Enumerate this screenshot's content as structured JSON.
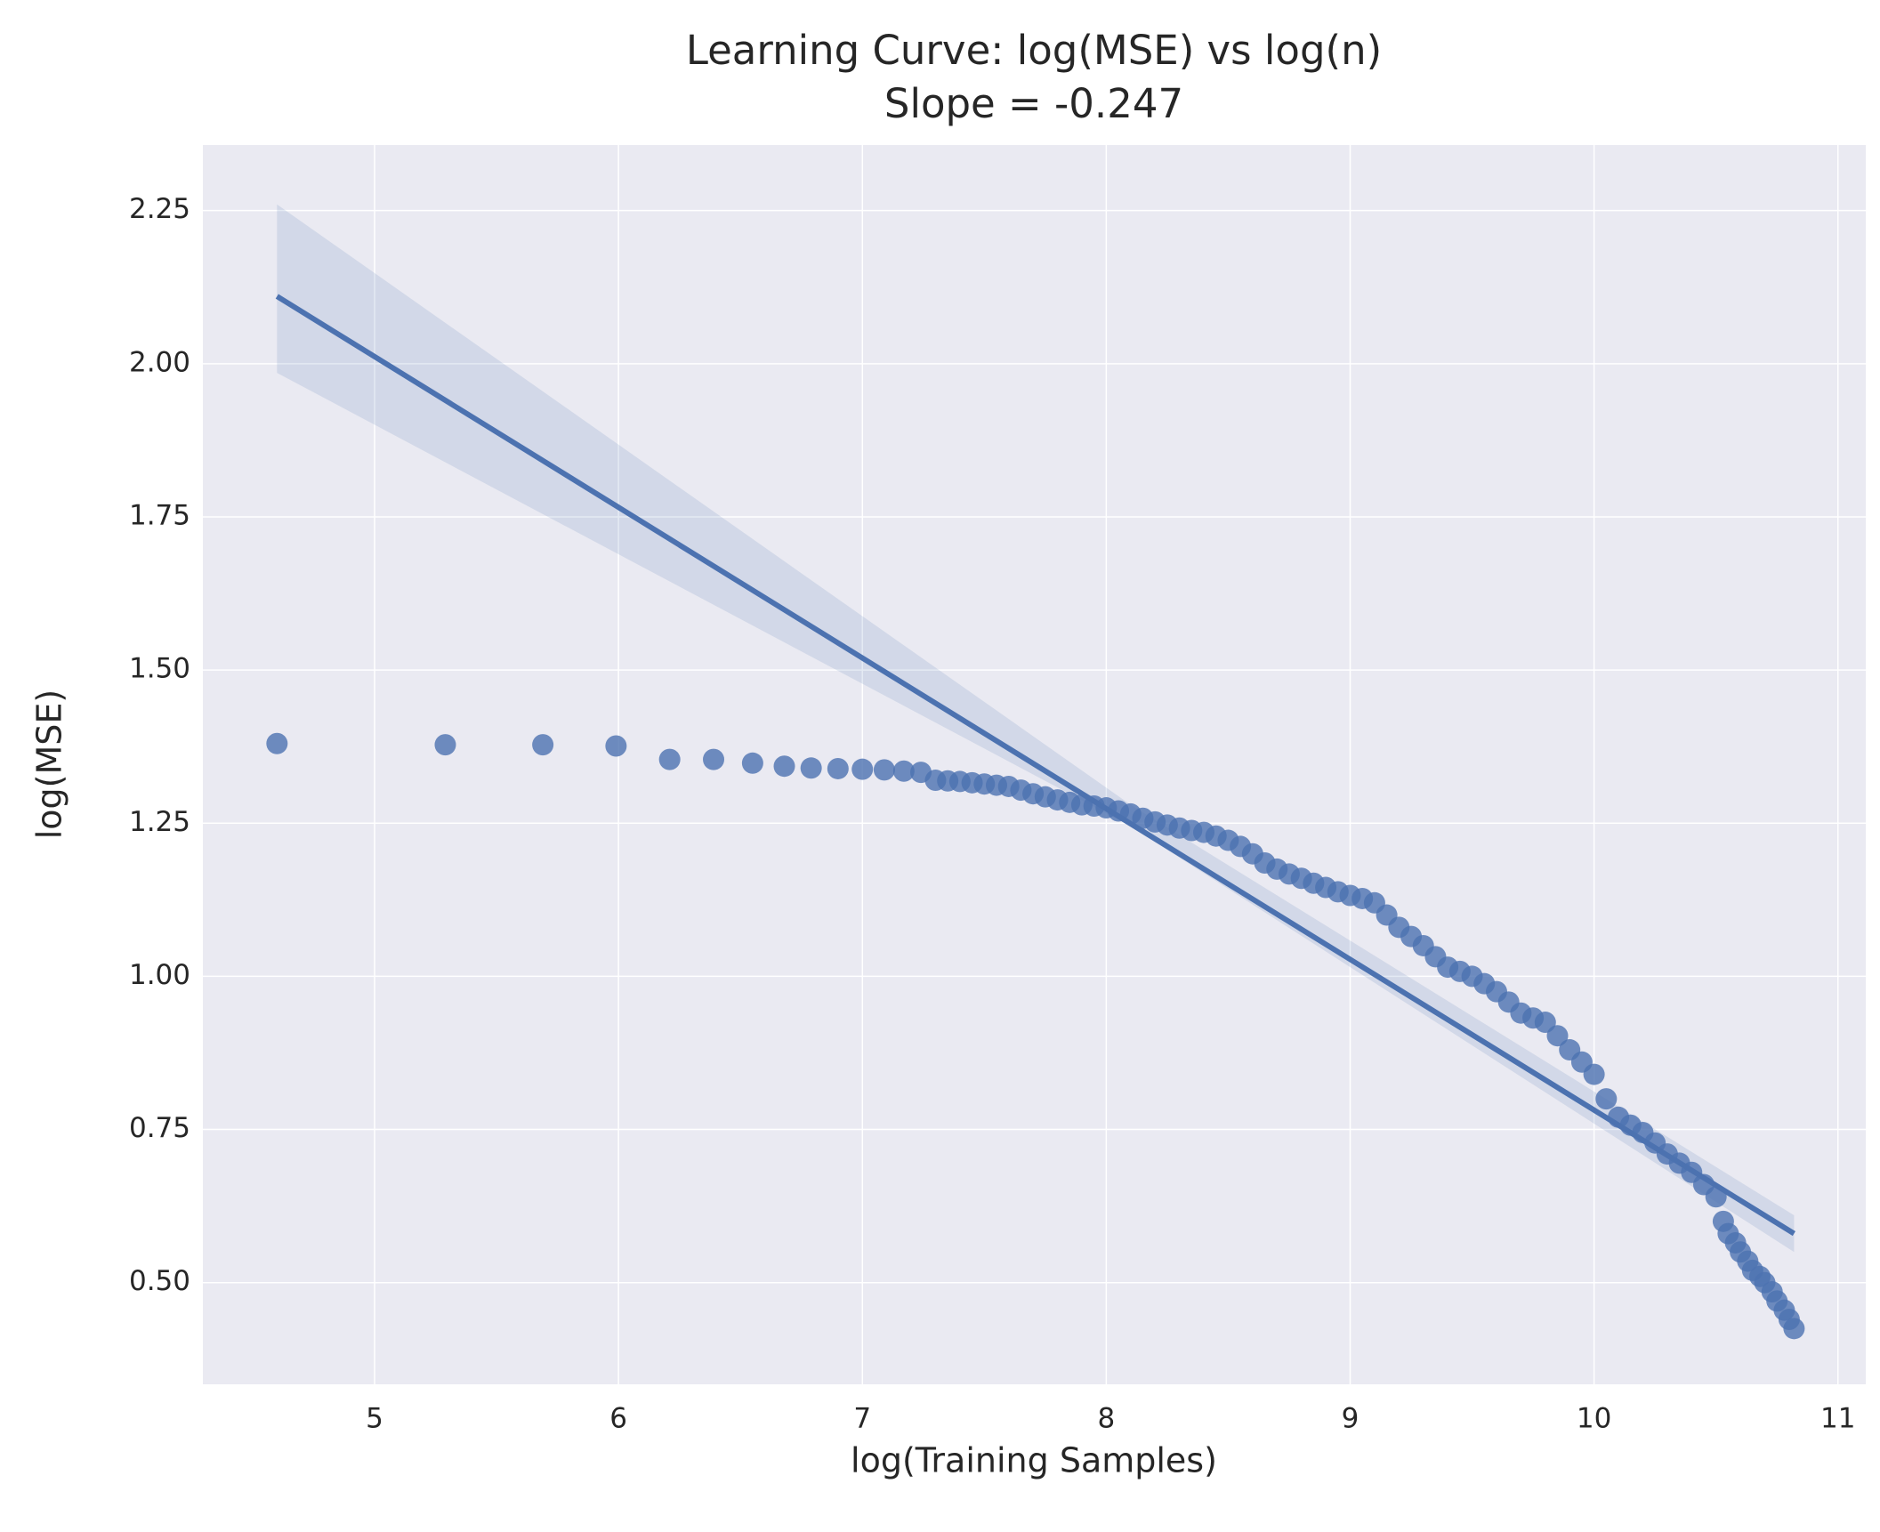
{
  "chart_data": {
    "type": "scatter",
    "title": "Learning Curve: log(MSE) vs log(n)",
    "subtitle": "Slope = -0.247",
    "x_label": "log(Training Samples)",
    "y_label": "log(MSE)",
    "color": "#4c72b0",
    "grid": true,
    "xlim": [
      4.296,
      11.114
    ],
    "ylim": [
      0.334,
      2.357
    ],
    "xticks": [
      5,
      6,
      7,
      8,
      9,
      10,
      11
    ],
    "yticks": [
      {
        "value": 0.5,
        "label": "0.50"
      },
      {
        "value": 0.75,
        "label": "0.75"
      },
      {
        "value": 1.0,
        "label": "1.00"
      },
      {
        "value": 1.25,
        "label": "1.25"
      },
      {
        "value": 1.5,
        "label": "1.50"
      },
      {
        "value": 1.75,
        "label": "1.75"
      },
      {
        "value": 2.0,
        "label": "2.00"
      },
      {
        "value": 2.25,
        "label": "2.25"
      }
    ],
    "x": [
      4.6,
      5.29,
      5.69,
      5.99,
      6.21,
      6.39,
      6.55,
      6.68,
      6.79,
      6.9,
      7.0,
      7.09,
      7.17,
      7.24,
      7.3,
      7.35,
      7.4,
      7.45,
      7.5,
      7.55,
      7.6,
      7.65,
      7.7,
      7.75,
      7.8,
      7.85,
      7.9,
      7.95,
      8.0,
      8.05,
      8.1,
      8.15,
      8.2,
      8.25,
      8.3,
      8.35,
      8.4,
      8.45,
      8.5,
      8.55,
      8.6,
      8.65,
      8.7,
      8.75,
      8.8,
      8.85,
      8.9,
      8.95,
      9.0,
      9.05,
      9.1,
      9.15,
      9.2,
      9.25,
      9.3,
      9.35,
      9.4,
      9.45,
      9.5,
      9.55,
      9.6,
      9.65,
      9.7,
      9.75,
      9.8,
      9.85,
      9.9,
      9.95,
      10.0,
      10.05,
      10.1,
      10.15,
      10.2,
      10.25,
      10.3,
      10.35,
      10.4,
      10.45,
      10.5,
      10.53,
      10.55,
      10.58,
      10.6,
      10.63,
      10.65,
      10.68,
      10.7,
      10.73,
      10.75,
      10.78,
      10.8,
      10.82
    ],
    "values": [
      1.38,
      1.378,
      1.378,
      1.376,
      1.354,
      1.354,
      1.348,
      1.343,
      1.34,
      1.339,
      1.338,
      1.337,
      1.335,
      1.333,
      1.32,
      1.319,
      1.318,
      1.316,
      1.314,
      1.312,
      1.31,
      1.304,
      1.298,
      1.293,
      1.288,
      1.284,
      1.28,
      1.278,
      1.275,
      1.27,
      1.265,
      1.258,
      1.252,
      1.247,
      1.242,
      1.238,
      1.235,
      1.229,
      1.222,
      1.212,
      1.2,
      1.185,
      1.175,
      1.167,
      1.16,
      1.152,
      1.145,
      1.138,
      1.132,
      1.127,
      1.12,
      1.1,
      1.08,
      1.065,
      1.05,
      1.032,
      1.015,
      1.008,
      1.0,
      0.988,
      0.975,
      0.958,
      0.94,
      0.932,
      0.925,
      0.903,
      0.88,
      0.86,
      0.84,
      0.8,
      0.77,
      0.757,
      0.745,
      0.728,
      0.71,
      0.695,
      0.68,
      0.66,
      0.64,
      0.6,
      0.58,
      0.565,
      0.55,
      0.535,
      0.52,
      0.51,
      0.5,
      0.485,
      0.47,
      0.455,
      0.44,
      0.425
    ],
    "fit": {
      "x": [
        4.6,
        10.82
      ],
      "y": [
        2.11,
        0.58
      ]
    },
    "ci": {
      "x": [
        4.6,
        8.1,
        10.82
      ],
      "upper": [
        2.26,
        1.28,
        0.61
      ],
      "lower": [
        1.985,
        1.245,
        0.55
      ]
    }
  }
}
